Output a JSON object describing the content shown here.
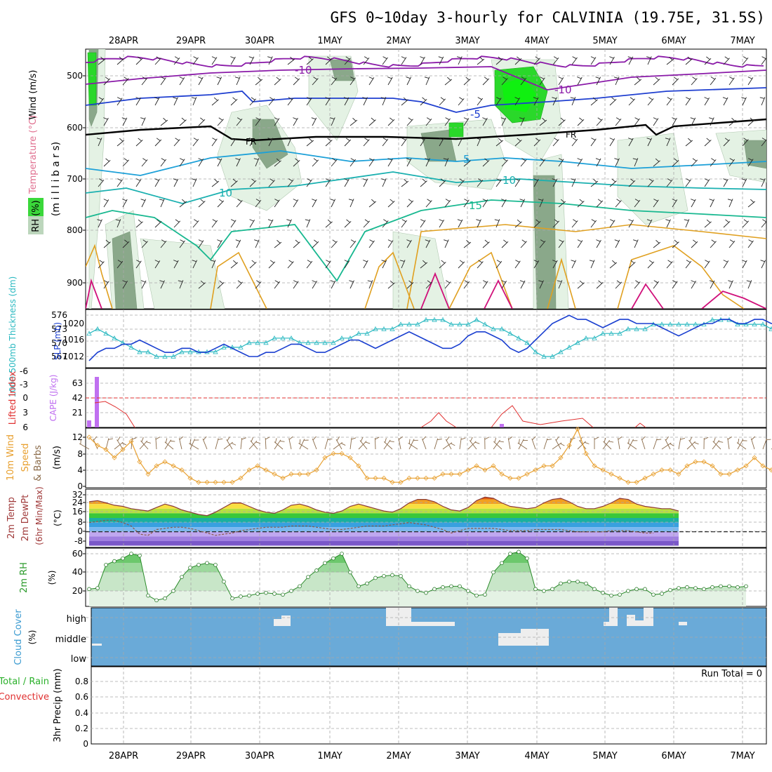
{
  "title": "GFS 0~10day 3-hourly for CALVINIA (19.75E, 31.5S)",
  "dates": [
    "28APR",
    "29APR",
    "30APR",
    "1MAY",
    "2MAY",
    "3MAY",
    "4MAY",
    "5MAY",
    "6MAY",
    "7MAY"
  ],
  "colors": {
    "grid": "#a8a8a8",
    "temp_purple": "#8a1aa8",
    "temp_blue": "#1f3fd0",
    "temp_cyan": "#1ca0d8",
    "temp_teal": "#1ab0b0",
    "temp_green": "#18b890",
    "temp_orange": "#e0a020",
    "temp_red": "#e06018",
    "temp_magenta": "#d0107a",
    "rh_light": "#e4f2e4",
    "rh_mid": "#bcd6bc",
    "rh_dark": "#8aa88a",
    "rh_bright": "#2ad82a",
    "slp": "#1a3fd0",
    "thickness": "#28b8c0",
    "lifted_index": "#e03030",
    "cape": "#c070f0",
    "wind10": "#e8a030",
    "barbs10": "#8a6a48",
    "rh2m": "#2a9a2a",
    "cloud": "#6aaad8",
    "cloud_gap": "#eeeeee",
    "dewpoint": "#8a5a4a"
  },
  "panels": {
    "upper": {
      "ylabel_wind": "Wind (m/s)",
      "ylabel_temp": "Temperature (°C)",
      "ylabel_rh": "RH (%)",
      "ylabel_mb": "(m i l l i b a r s)",
      "levels": [
        "500",
        "600",
        "700",
        "800",
        "900"
      ],
      "contour_labels": [
        {
          "text": "-10",
          "color": "temp_purple"
        },
        {
          "text": "-10",
          "color": "temp_purple"
        },
        {
          "text": "-5",
          "color": "temp_blue"
        },
        {
          "text": "FR",
          "color": "black"
        },
        {
          "text": "FR",
          "color": "black"
        },
        {
          "text": "5",
          "color": "temp_cyan"
        },
        {
          "text": "10",
          "color": "temp_teal"
        },
        {
          "text": "10",
          "color": "temp_teal"
        },
        {
          "text": "15",
          "color": "temp_green"
        }
      ]
    },
    "slp": {
      "ylabel_thickness": "1000-500mb Thickness (dm)",
      "ylabel_slp": "SLP (mb)",
      "thickness_ticks": [
        "576",
        "573",
        "570",
        "567"
      ],
      "slp_ticks": [
        "1020",
        "1016",
        "1012"
      ]
    },
    "cape": {
      "ylabel_li": "Lifted Index",
      "ylabel_cape": "CAPE (J/kg)",
      "li_ticks": [
        "-6",
        "-3",
        "0",
        "3",
        "6"
      ],
      "cape_ticks": [
        "63",
        "42",
        "21"
      ]
    },
    "wind10": {
      "ylabel1": "10m Wind",
      "ylabel2": "Speed",
      "ylabel3": "& Barbs",
      "ylabel4": "(m/s)",
      "ticks": [
        "12",
        "8",
        "4",
        "0"
      ]
    },
    "temp2m": {
      "ylabel1": "2m Temp",
      "ylabel2": "2m DewPt",
      "ylabel3": "(6hr Min/Max)",
      "ylabel4": "(°C)",
      "ticks": [
        "32",
        "24",
        "16",
        "8",
        "0",
        "-8"
      ]
    },
    "rh2m": {
      "ylabel": "2m RH",
      "ylabel_unit": "(%)",
      "ticks": [
        "60",
        "40",
        "20"
      ]
    },
    "cloud": {
      "ylabel": "Cloud Cover",
      "ylabel_unit": "(%)",
      "levels": [
        "high",
        "middle",
        "low"
      ]
    },
    "precip": {
      "ylabel_total": "Total / Rain",
      "ylabel_conv": "Convective",
      "ylabel": "3hr Precip (mm)",
      "ticks": [
        "0.8",
        "0.6",
        "0.4",
        "0.2",
        "0"
      ],
      "run_total": "Run Total = 0"
    }
  },
  "chart_data": {
    "type": "line",
    "time_step_hours": 3,
    "x_start": "27APR 12Z",
    "slp_mb": [
      1011,
      1013,
      1014,
      1014,
      1015,
      1015,
      1016,
      1015,
      1014,
      1013,
      1013,
      1014,
      1014,
      1013,
      1013,
      1014,
      1015,
      1014,
      1013,
      1012,
      1012,
      1013,
      1013,
      1014,
      1015,
      1015,
      1014,
      1013,
      1013,
      1014,
      1015,
      1016,
      1016,
      1015,
      1014,
      1015,
      1016,
      1017,
      1018,
      1017,
      1016,
      1015,
      1014,
      1014,
      1015,
      1017,
      1018,
      1018,
      1017,
      1016,
      1014,
      1013,
      1014,
      1016,
      1018,
      1020,
      1021,
      1022,
      1021,
      1021,
      1020,
      1019,
      1020,
      1021,
      1021,
      1020,
      1020,
      1020,
      1019,
      1018,
      1017,
      1018,
      1019,
      1020,
      1020,
      1021,
      1021,
      1020,
      1020,
      1021,
      1021,
      1020,
      1020,
      1020,
      1021
    ],
    "thickness_dm": [
      572,
      573,
      572,
      571,
      570,
      569,
      568,
      568,
      567,
      567,
      567,
      568,
      568,
      568,
      568,
      568,
      569,
      569,
      569,
      570,
      570,
      570,
      571,
      571,
      571,
      570,
      570,
      570,
      570,
      570,
      571,
      571,
      572,
      572,
      573,
      573,
      573,
      574,
      574,
      574,
      575,
      575,
      575,
      574,
      574,
      574,
      575,
      574,
      573,
      573,
      572,
      571,
      570,
      568,
      567,
      567,
      568,
      569,
      570,
      571,
      571,
      572,
      572,
      572,
      573,
      573,
      573,
      574,
      574,
      574,
      574,
      574,
      574,
      574,
      575,
      575,
      575,
      574,
      574,
      574,
      574,
      573,
      573,
      574,
      573
    ],
    "lifted_index": [
      3,
      2,
      0,
      -1,
      0,
      0,
      1,
      2,
      4,
      6
    ],
    "cape_jkg": [
      10,
      72,
      0,
      0,
      0,
      0,
      0,
      0,
      0,
      0
    ],
    "wind10_ms": [
      12,
      10,
      9,
      7,
      9,
      11,
      6,
      3,
      5,
      6,
      5,
      4,
      2,
      1,
      1,
      1,
      1,
      1,
      2,
      4,
      5,
      4,
      3,
      2,
      3,
      3,
      3,
      4,
      7,
      8,
      8,
      7,
      5,
      2,
      2,
      2,
      1,
      1,
      2,
      2,
      2,
      2,
      3,
      3,
      3,
      4,
      5,
      4,
      5,
      3,
      2,
      2,
      3,
      4,
      5,
      5,
      7,
      10,
      14,
      8,
      5,
      4,
      3,
      2,
      1,
      1,
      2,
      3,
      4,
      4,
      3,
      5,
      6,
      6,
      5,
      3,
      3,
      4,
      5,
      7,
      5,
      4,
      3,
      1,
      1,
      1,
      1,
      1,
      2
    ],
    "temp2m_c": [
      26,
      27,
      25,
      23,
      22,
      20,
      19,
      18,
      21,
      24,
      22,
      19,
      17,
      15,
      14,
      17,
      21,
      25,
      25,
      22,
      19,
      17,
      16,
      19,
      23,
      24,
      22,
      19,
      17,
      16,
      18,
      22,
      24,
      22,
      20,
      18,
      17,
      20,
      25,
      28,
      28,
      26,
      22,
      19,
      18,
      21,
      27,
      30,
      29,
      25,
      22,
      21,
      20,
      21,
      25,
      28,
      29,
      26,
      22,
      20,
      20,
      22,
      25,
      29,
      28,
      24,
      22,
      21,
      20,
      20,
      18
    ],
    "dewpt2m_c": [
      8,
      9,
      10,
      10,
      8,
      5,
      -2,
      -3,
      2,
      3,
      4,
      4,
      3,
      1,
      -1,
      -3,
      -2,
      -1,
      1,
      2,
      3,
      4,
      4,
      4,
      5,
      5,
      5,
      4,
      3,
      2,
      2,
      3,
      4,
      5,
      5,
      5,
      6,
      7,
      8,
      7,
      6,
      4,
      2,
      -1,
      1,
      3,
      3,
      3,
      3,
      2,
      1,
      1,
      1,
      2,
      2,
      2,
      2,
      1,
      0,
      0,
      0,
      0,
      1,
      1,
      1,
      0,
      -1,
      -1
    ],
    "rh2m_pct": [
      22,
      23,
      48,
      52,
      55,
      60,
      58,
      15,
      10,
      12,
      20,
      35,
      45,
      48,
      50,
      48,
      30,
      12,
      14,
      15,
      17,
      18,
      17,
      16,
      20,
      25,
      35,
      42,
      50,
      55,
      60,
      40,
      25,
      28,
      34,
      36,
      37,
      36,
      25,
      20,
      18,
      22,
      24,
      25,
      25,
      20,
      15,
      16,
      40,
      50,
      60,
      62,
      55,
      22,
      20,
      22,
      28,
      30,
      30,
      28,
      22,
      18,
      15,
      16,
      20,
      22,
      22,
      16,
      17,
      21,
      23,
      24,
      23,
      22,
      24,
      25,
      25,
      24,
      25
    ],
    "precip_mm": [
      0,
      0,
      0,
      0,
      0,
      0,
      0,
      0,
      0,
      0
    ],
    "xlabel": "",
    "ylabel": ""
  }
}
